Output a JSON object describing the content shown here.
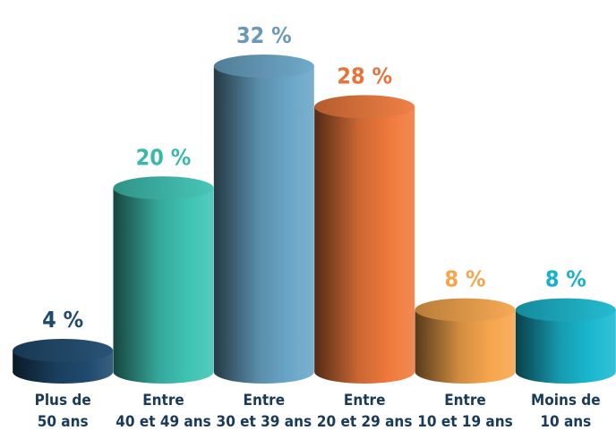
{
  "chart_data": {
    "type": "bar",
    "style": "3d-cylinder",
    "categories": [
      [
        "Plus de",
        "50 ans"
      ],
      [
        "Entre",
        "40 et 49 ans"
      ],
      [
        "Entre",
        "30 et 39 ans"
      ],
      [
        "Entre",
        "20 et 29 ans"
      ],
      [
        "Entre",
        "10 et 19 ans"
      ],
      [
        "Moins de",
        "10 ans"
      ]
    ],
    "values": [
      4,
      20,
      32,
      28,
      8,
      8
    ],
    "value_labels": [
      "4 %",
      "20 %",
      "32 %",
      "28 %",
      "8 %",
      "8 %"
    ],
    "colors": [
      "#1f4a6e",
      "#3ec4b4",
      "#6aa6c8",
      "#f07a3c",
      "#f7a64c",
      "#1ab8d0"
    ],
    "label_colors": [
      "#1f4a6e",
      "#3ab8a8",
      "#6a9ab8",
      "#e8733a",
      "#f5a54a",
      "#1ab0c8"
    ],
    "ylim": [
      0,
      32
    ],
    "grid": false,
    "legend": "none"
  }
}
